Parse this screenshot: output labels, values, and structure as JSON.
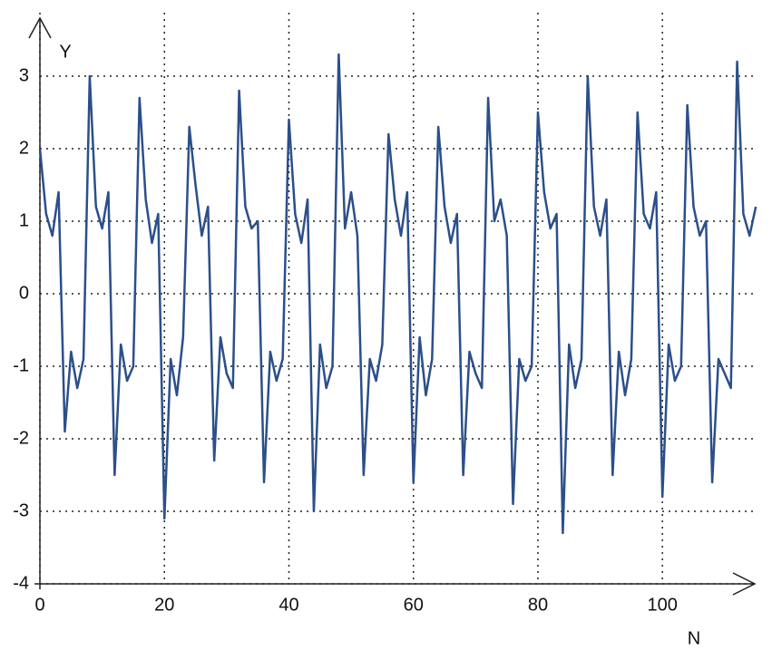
{
  "chart_data": {
    "type": "line",
    "x_label": "N",
    "y_label": "Y",
    "x": [
      0,
      1,
      2,
      3,
      4,
      5,
      6,
      7,
      8,
      9,
      10,
      11,
      12,
      13,
      14,
      15,
      16,
      17,
      18,
      19,
      20,
      21,
      22,
      23,
      24,
      25,
      26,
      27,
      28,
      29,
      30,
      31,
      32,
      33,
      34,
      35,
      36,
      37,
      38,
      39,
      40,
      41,
      42,
      43,
      44,
      45,
      46,
      47,
      48,
      49,
      50,
      51,
      52,
      53,
      54,
      55,
      56,
      57,
      58,
      59,
      60,
      61,
      62,
      63,
      64,
      65,
      66,
      67,
      68,
      69,
      70,
      71,
      72,
      73,
      74,
      75,
      76,
      77,
      78,
      79,
      80,
      81,
      82,
      83,
      84,
      85,
      86,
      87,
      88,
      89,
      90,
      91,
      92,
      93,
      94,
      95,
      96,
      97,
      98,
      99,
      100,
      101,
      102,
      103,
      104,
      105,
      106,
      107,
      108,
      109,
      110,
      111,
      112,
      113,
      114,
      115
    ],
    "values": [
      2.0,
      1.1,
      0.8,
      1.4,
      -1.9,
      -0.8,
      -1.3,
      -0.9,
      3.0,
      1.2,
      0.9,
      1.4,
      -2.5,
      -0.7,
      -1.2,
      -1.0,
      2.7,
      1.3,
      0.7,
      1.1,
      -3.1,
      -0.9,
      -1.4,
      -0.6,
      2.3,
      1.5,
      0.8,
      1.2,
      -2.3,
      -0.6,
      -1.1,
      -1.3,
      2.8,
      1.2,
      0.9,
      1.0,
      -2.6,
      -0.8,
      -1.2,
      -0.9,
      2.4,
      1.1,
      0.7,
      1.3,
      -3.0,
      -0.7,
      -1.3,
      -1.0,
      3.3,
      0.9,
      1.4,
      0.8,
      -2.5,
      -0.9,
      -1.2,
      -0.7,
      2.2,
      1.3,
      0.8,
      1.4,
      -2.6,
      -0.6,
      -1.4,
      -0.9,
      2.3,
      1.2,
      0.7,
      1.1,
      -2.5,
      -0.8,
      -1.1,
      -1.3,
      2.7,
      1.0,
      1.3,
      0.8,
      -2.9,
      -0.9,
      -1.2,
      -1.0,
      2.5,
      1.4,
      0.9,
      1.1,
      -3.3,
      -0.7,
      -1.3,
      -0.9,
      3.0,
      1.2,
      0.8,
      1.3,
      -2.5,
      -0.8,
      -1.4,
      -0.9,
      2.5,
      1.1,
      0.9,
      1.4,
      -2.8,
      -0.7,
      -1.2,
      -1.0,
      2.6,
      1.2,
      0.8,
      1.0,
      -2.6,
      -0.9,
      -1.1,
      -1.3,
      3.2,
      1.1,
      0.8,
      1.2
    ],
    "color": "#2b4f8a",
    "xlim": [
      0,
      116
    ],
    "ylim": [
      -4,
      3.8
    ],
    "xticks": [
      0,
      20,
      40,
      60,
      80,
      100
    ],
    "yticks": [
      -4,
      -3,
      -2,
      -1,
      0,
      1,
      2,
      3
    ],
    "grid": true
  }
}
